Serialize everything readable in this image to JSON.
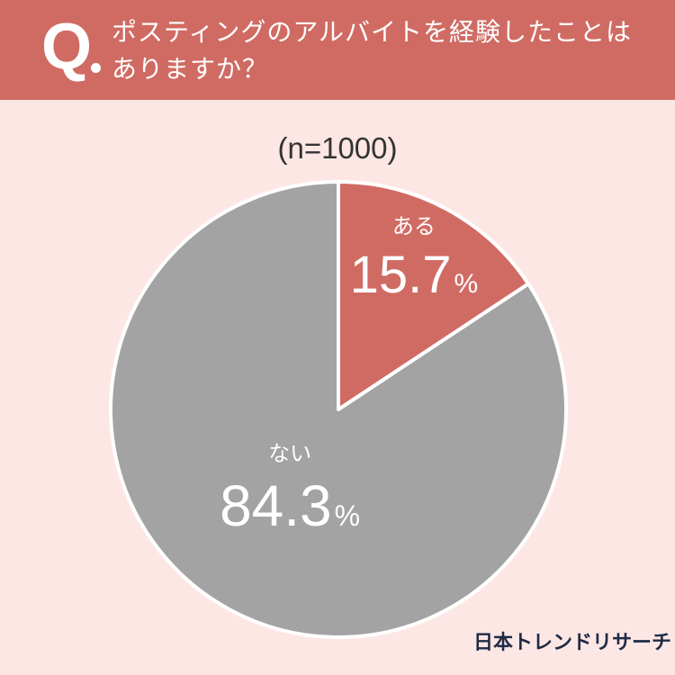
{
  "header": {
    "q_mark": "Q",
    "question_lines": [
      "ポスティングのアルバイトを経験したことは",
      "ありますか？"
    ]
  },
  "n_label": "(n=1000)",
  "brand": "日本トレンドリサーチ",
  "colors": {
    "header_bg": "#d06b63",
    "page_bg": "#fde7e4",
    "aru": "#d06b63",
    "nai": "#a3a3a3"
  },
  "chart_data": {
    "type": "pie",
    "title": "ポスティングのアルバイトを経験したことはありますか？",
    "n": "(n=1000)",
    "unit": "%",
    "slices": [
      {
        "label": "ある",
        "value": 15.7,
        "value_text": "15.7",
        "color": "#d06b63"
      },
      {
        "label": "ない",
        "value": 84.3,
        "value_text": "84.3",
        "color": "#a3a3a3"
      }
    ]
  }
}
